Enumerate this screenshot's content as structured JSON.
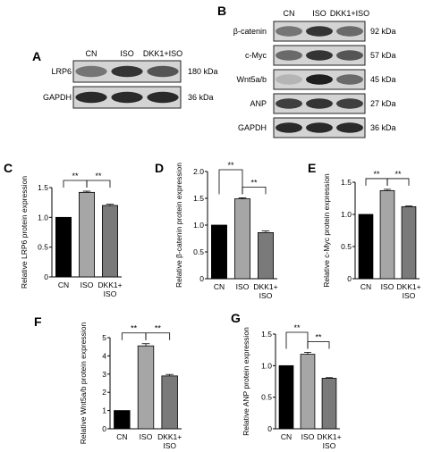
{
  "panel_labels": [
    "A",
    "B",
    "C",
    "D",
    "E",
    "F",
    "G"
  ],
  "blot_a": {
    "lanes": [
      "CN",
      "ISO",
      "DKK1+ISO"
    ],
    "rows": [
      {
        "label": "LRP6",
        "size": "180 kDa",
        "intensity": [
          0.55,
          0.85,
          0.7
        ]
      },
      {
        "label": "GAPDH",
        "size": "36 kDa",
        "intensity": [
          0.9,
          0.9,
          0.9
        ]
      }
    ]
  },
  "blot_b": {
    "lanes": [
      "CN",
      "ISO",
      "DKK1+ISO"
    ],
    "rows": [
      {
        "label": "β-catenin",
        "size": "92 kDa",
        "intensity": [
          0.55,
          0.85,
          0.6
        ]
      },
      {
        "label": "c-Myc",
        "size": "57 kDa",
        "intensity": [
          0.6,
          0.85,
          0.7
        ]
      },
      {
        "label": "Wnt5a/b",
        "size": "45 kDa",
        "intensity": [
          0.25,
          0.95,
          0.6
        ]
      },
      {
        "label": "ANP",
        "size": "27 kDa",
        "intensity": [
          0.8,
          0.85,
          0.8
        ]
      },
      {
        "label": "GAPDH",
        "size": "36 kDa",
        "intensity": [
          0.9,
          0.9,
          0.9
        ]
      }
    ]
  },
  "chart_data": [
    {
      "panel": "C",
      "type": "bar",
      "categories": [
        "CN",
        "ISO",
        "DKK1+ ISO"
      ],
      "values": [
        1.0,
        1.42,
        1.2
      ],
      "errors": [
        0,
        0.02,
        0.02
      ],
      "bar_colors": [
        "#000000",
        "#a6a6a6",
        "#7a7a7a"
      ],
      "ylabel": "Relative LRP6 protein expression",
      "ylim": [
        0,
        1.5
      ],
      "yticks": [
        "0",
        "0.5",
        "1.0",
        "1.5"
      ],
      "ytick_values": [
        0,
        0.5,
        1.0,
        1.5
      ],
      "significance": [
        {
          "from": 0,
          "to": 1,
          "label": "**"
        },
        {
          "from": 1,
          "to": 2,
          "label": "**"
        }
      ]
    },
    {
      "panel": "D",
      "type": "bar",
      "categories": [
        "CN",
        "ISO",
        "DKK1+ ISO"
      ],
      "values": [
        1.0,
        1.49,
        0.86
      ],
      "errors": [
        0,
        0.02,
        0.03
      ],
      "bar_colors": [
        "#000000",
        "#a6a6a6",
        "#7a7a7a"
      ],
      "ylabel": "Relative β-catenin protein expression",
      "ylim": [
        0,
        2.0
      ],
      "yticks": [
        "0",
        "0.5",
        "1.0",
        "1.5",
        "2.0"
      ],
      "ytick_values": [
        0,
        0.5,
        1.0,
        1.5,
        2.0
      ],
      "significance": [
        {
          "from": 0,
          "to": 1,
          "label": "**"
        },
        {
          "from": 1,
          "to": 2,
          "label": "**"
        }
      ]
    },
    {
      "panel": "E",
      "type": "bar",
      "categories": [
        "CN",
        "ISO",
        "DKK1+ ISO"
      ],
      "values": [
        1.0,
        1.37,
        1.12
      ],
      "errors": [
        0,
        0.02,
        0.01
      ],
      "bar_colors": [
        "#000000",
        "#a6a6a6",
        "#7a7a7a"
      ],
      "ylabel": "Relative c-Myc protein expression",
      "ylim": [
        0,
        1.5
      ],
      "yticks": [
        "0",
        "0.5",
        "1.0",
        "1.5"
      ],
      "ytick_values": [
        0,
        0.5,
        1.0,
        1.5
      ],
      "significance": [
        {
          "from": 0,
          "to": 1,
          "label": "**"
        },
        {
          "from": 1,
          "to": 2,
          "label": "**"
        }
      ]
    },
    {
      "panel": "F",
      "type": "bar",
      "categories": [
        "CN",
        "ISO",
        "DKK1+ ISO"
      ],
      "values": [
        1.0,
        4.55,
        2.9
      ],
      "errors": [
        0,
        0.12,
        0.08
      ],
      "bar_colors": [
        "#000000",
        "#a6a6a6",
        "#7a7a7a"
      ],
      "ylabel": "Relative Wnt5a/b protein expression",
      "ylim": [
        0,
        5
      ],
      "yticks": [
        "0",
        "1",
        "2",
        "3",
        "4",
        "5"
      ],
      "ytick_values": [
        0,
        1,
        2,
        3,
        4,
        5
      ],
      "significance": [
        {
          "from": 0,
          "to": 1,
          "label": "**"
        },
        {
          "from": 1,
          "to": 2,
          "label": "**"
        }
      ]
    },
    {
      "panel": "G",
      "type": "bar",
      "categories": [
        "CN",
        "ISO",
        "DKK1+ ISO"
      ],
      "values": [
        1.0,
        1.18,
        0.8
      ],
      "errors": [
        0,
        0.03,
        0.01
      ],
      "bar_colors": [
        "#000000",
        "#a6a6a6",
        "#7a7a7a"
      ],
      "ylabel": "Relative ANP protein expression",
      "ylim": [
        0,
        1.5
      ],
      "yticks": [
        "0",
        "0.5",
        "1.0",
        "1.5"
      ],
      "ytick_values": [
        0,
        0.5,
        1.0,
        1.5
      ],
      "significance": [
        {
          "from": 0,
          "to": 1,
          "label": "**"
        },
        {
          "from": 1,
          "to": 2,
          "label": "**"
        }
      ]
    }
  ]
}
